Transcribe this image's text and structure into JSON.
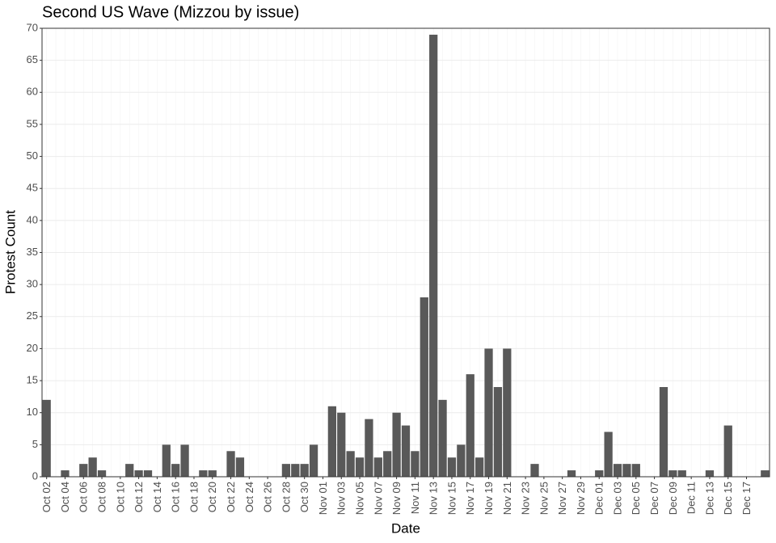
{
  "chart_data": {
    "type": "bar",
    "title": "Second US Wave (Mizzou by issue)",
    "x_label": "Date",
    "y_label": "Protest Count",
    "categories": [
      "Oct 02",
      null,
      "Oct 04",
      null,
      "Oct 06",
      null,
      "Oct 08",
      null,
      "Oct 10",
      null,
      "Oct 12",
      null,
      "Oct 14",
      null,
      "Oct 16",
      null,
      "Oct 18",
      null,
      "Oct 20",
      null,
      "Oct 22",
      null,
      "Oct 24",
      null,
      "Oct 26",
      null,
      "Oct 28",
      null,
      "Oct 30",
      null,
      "Nov 01",
      null,
      "Nov 03",
      null,
      "Nov 05",
      null,
      "Nov 07",
      null,
      "Nov 09",
      null,
      "Nov 11",
      null,
      "Nov 13",
      null,
      "Nov 15",
      null,
      "Nov 17",
      null,
      "Nov 19",
      null,
      "Nov 21",
      null,
      "Nov 23",
      null,
      "Nov 25",
      null,
      "Nov 27",
      null,
      "Nov 29",
      null,
      "Dec 01",
      null,
      "Dec 03",
      null,
      "Dec 05",
      null,
      "Dec 07",
      null,
      "Dec 09",
      null,
      "Dec 11",
      null,
      "Dec 13",
      null,
      "Dec 15",
      null,
      "Dec 17",
      null,
      null
    ],
    "values": [
      12,
      0,
      1,
      0,
      2,
      3,
      1,
      0,
      0,
      2,
      1,
      1,
      0,
      5,
      2,
      5,
      0,
      1,
      1,
      0,
      4,
      3,
      0,
      0,
      0,
      0,
      2,
      2,
      2,
      5,
      0,
      11,
      10,
      4,
      3,
      9,
      3,
      4,
      10,
      8,
      4,
      28,
      69,
      12,
      3,
      5,
      16,
      3,
      20,
      14,
      20,
      0,
      0,
      2,
      0,
      0,
      0,
      1,
      0,
      0,
      1,
      7,
      2,
      2,
      2,
      0,
      0,
      14,
      1,
      1,
      0,
      0,
      1,
      0,
      8,
      0,
      0,
      0,
      1
    ],
    "color": "#595959",
    "ylim": [
      0,
      70
    ],
    "yticks": [
      0,
      5,
      10,
      15,
      20,
      25,
      30,
      35,
      40,
      45,
      50,
      55,
      60,
      65,
      70
    ],
    "grid": true
  }
}
